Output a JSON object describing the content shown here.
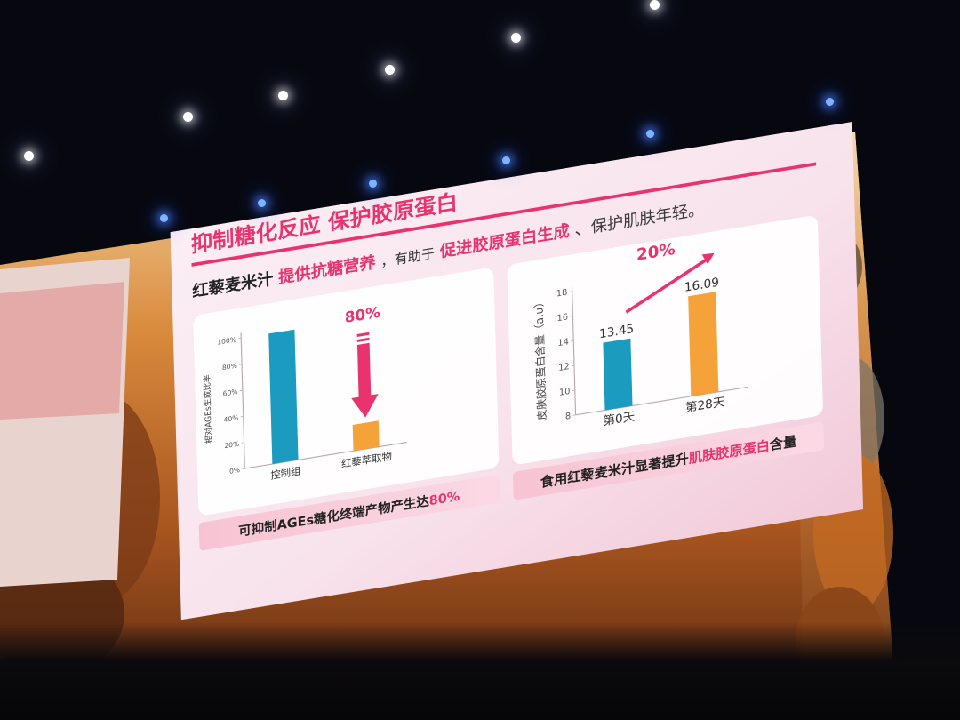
{
  "slide": {
    "title": "抑制糖化反应 保护胶原蛋白",
    "subtitle_parts": [
      "红藜麦米汁",
      "提供抗糖营养",
      "，有助于",
      "促进胶原蛋白生成",
      "、保护肌肤年轻。"
    ],
    "accent_color": "#e8336e",
    "left_caption": [
      "可抑制AGEs糖化终端产物产生达",
      "80%"
    ],
    "right_caption": [
      "食用红藜麦米汁显著提升",
      "肌肤胶原蛋白",
      "含量"
    ]
  },
  "chart_data": [
    {
      "type": "bar",
      "categories": [
        "控制组",
        "红藜萃取物"
      ],
      "values": [
        100,
        20
      ],
      "ylabel": "相对AGEs生成比率",
      "ylim": [
        0,
        100
      ],
      "yticks": [
        "0%",
        "20%",
        "40%",
        "60%",
        "80%",
        "100%"
      ],
      "annotation": "80%",
      "colors": [
        "#1a9bbf",
        "#f5a23a"
      ]
    },
    {
      "type": "bar",
      "categories": [
        "第0天",
        "第28天"
      ],
      "values": [
        13.45,
        16.09
      ],
      "data_labels": [
        "13.45",
        "16.09"
      ],
      "ylabel": "皮肤胶原蛋白含量（a.u）",
      "ylim": [
        8,
        18
      ],
      "yticks": [
        "8",
        "10",
        "12",
        "14",
        "16",
        "18"
      ],
      "annotation": "20%",
      "colors": [
        "#1a9bbf",
        "#f5a23a"
      ]
    }
  ]
}
